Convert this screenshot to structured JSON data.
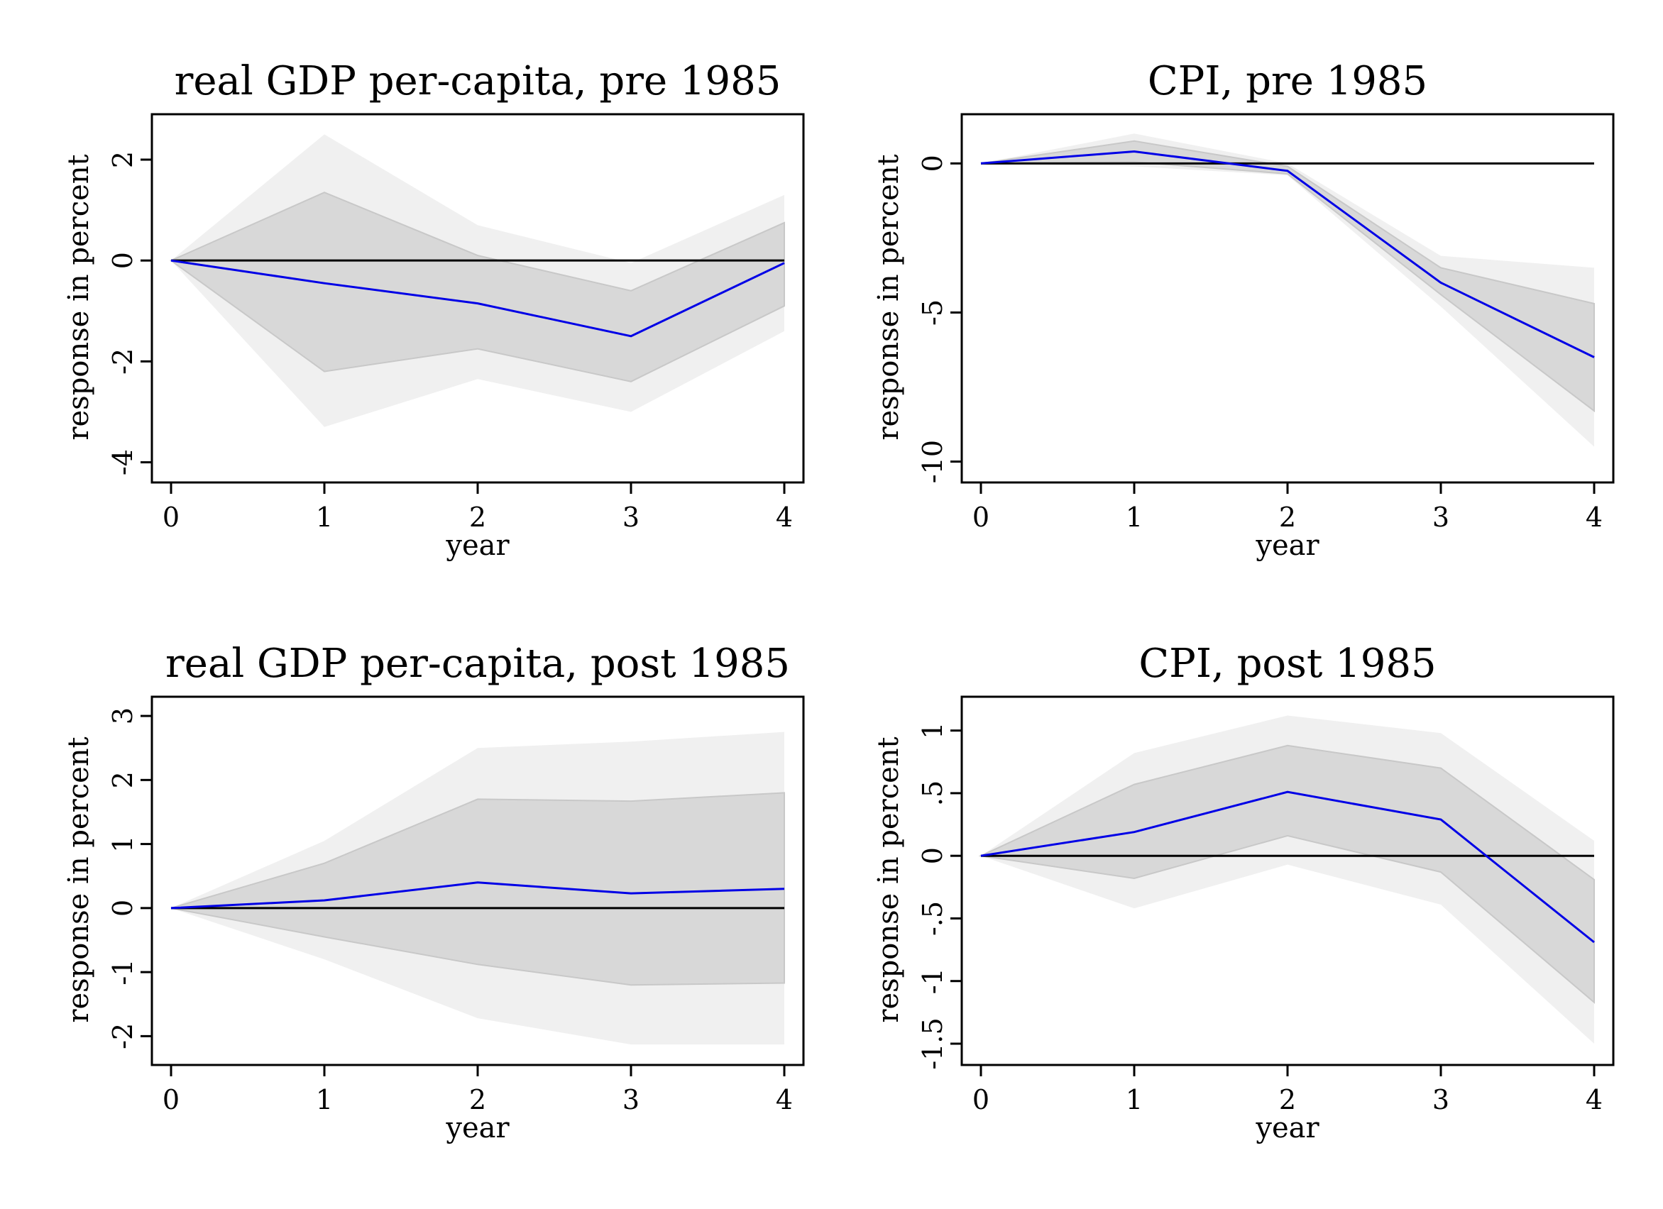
{
  "colors": {
    "outer_band": "#f0f0f0",
    "inner_band": "#d8d8d8",
    "inner_band_edge": "#c8c8c8",
    "response_line": "#0000e6",
    "zero_line": "#000000"
  },
  "chart_data": [
    {
      "type": "area",
      "title": "real GDP per-capita, pre 1985",
      "xlabel": "year",
      "ylabel": "response in percent",
      "x": [
        0,
        1,
        2,
        3,
        4
      ],
      "xticks": [
        "0",
        "1",
        "2",
        "3",
        "4"
      ],
      "ylim": [
        -4.4,
        2.9
      ],
      "yticks": [
        -4,
        -2,
        0,
        2
      ],
      "ytick_labels": [
        "-4",
        "-2",
        "0",
        "2"
      ],
      "response": [
        0,
        -0.45,
        -0.85,
        -1.5,
        -0.05
      ],
      "inner_band": {
        "upper": [
          0,
          1.35,
          0.1,
          -0.6,
          0.75
        ],
        "lower": [
          0,
          -2.2,
          -1.75,
          -2.4,
          -0.9
        ]
      },
      "outer_band": {
        "upper": [
          0,
          2.5,
          0.7,
          -0.05,
          1.3
        ],
        "lower": [
          0,
          -3.3,
          -2.35,
          -3.0,
          -1.4
        ]
      },
      "zero_line": 0
    },
    {
      "type": "area",
      "title": "CPI, pre 1985",
      "xlabel": "year",
      "ylabel": "response in percent",
      "x": [
        0,
        1,
        2,
        3,
        4
      ],
      "xticks": [
        "0",
        "1",
        "2",
        "3",
        "4"
      ],
      "ylim": [
        -10.7,
        1.65
      ],
      "yticks": [
        -10,
        -5,
        0
      ],
      "ytick_labels": [
        "-10",
        "-5",
        "0"
      ],
      "response": [
        0,
        0.4,
        -0.25,
        -4.0,
        -6.5
      ],
      "inner_band": {
        "upper": [
          0,
          0.75,
          -0.1,
          -3.5,
          -4.7
        ],
        "lower": [
          0,
          0.05,
          -0.35,
          -4.4,
          -8.3
        ]
      },
      "outer_band": {
        "upper": [
          0,
          1.0,
          0.0,
          -3.1,
          -3.5
        ],
        "lower": [
          0,
          -0.1,
          -0.4,
          -4.8,
          -9.5
        ]
      },
      "zero_line": 0
    },
    {
      "type": "area",
      "title": "real GDP per-capita, post 1985",
      "xlabel": "year",
      "ylabel": "response in percent",
      "x": [
        0,
        1,
        2,
        3,
        4
      ],
      "xticks": [
        "0",
        "1",
        "2",
        "3",
        "4"
      ],
      "ylim": [
        -2.45,
        3.3
      ],
      "yticks": [
        -2,
        -1,
        0,
        1,
        2,
        3
      ],
      "ytick_labels": [
        "-2",
        "-1",
        "0",
        "1",
        "2",
        "3"
      ],
      "response": [
        0,
        0.12,
        0.4,
        0.23,
        0.3
      ],
      "inner_band": {
        "upper": [
          0,
          0.7,
          1.7,
          1.67,
          1.8
        ],
        "lower": [
          0,
          -0.45,
          -0.88,
          -1.2,
          -1.17
        ]
      },
      "outer_band": {
        "upper": [
          0,
          1.05,
          2.5,
          2.6,
          2.75
        ],
        "lower": [
          0,
          -0.8,
          -1.72,
          -2.13,
          -2.13
        ]
      },
      "zero_line": 0
    },
    {
      "type": "area",
      "title": "CPI, post 1985",
      "xlabel": "year",
      "ylabel": "response in percent",
      "x": [
        0,
        1,
        2,
        3,
        4
      ],
      "xticks": [
        "0",
        "1",
        "2",
        "3",
        "4"
      ],
      "ylim": [
        -1.67,
        1.27
      ],
      "yticks": [
        -1.5,
        -1,
        -0.5,
        0,
        0.5,
        1
      ],
      "ytick_labels": [
        "-1.5",
        "-1",
        "-.5",
        "0",
        ".5",
        "1"
      ],
      "response": [
        0,
        0.19,
        0.51,
        0.29,
        -0.69
      ],
      "inner_band": {
        "upper": [
          0,
          0.57,
          0.88,
          0.7,
          -0.19
        ],
        "lower": [
          0,
          -0.18,
          0.16,
          -0.13,
          -1.17
        ]
      },
      "outer_band": {
        "upper": [
          0,
          0.82,
          1.12,
          0.98,
          0.12
        ],
        "lower": [
          0,
          -0.42,
          -0.07,
          -0.39,
          -1.5
        ]
      },
      "zero_line": 0
    }
  ]
}
